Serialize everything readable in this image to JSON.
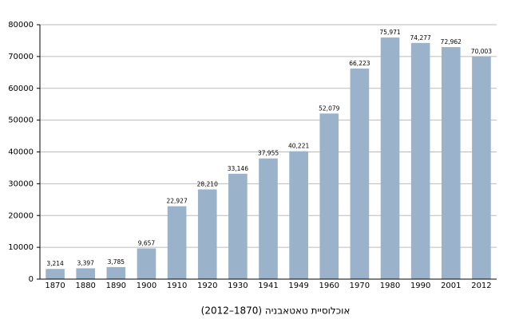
{
  "chart_data": {
    "type": "bar",
    "title": "אוכלוסיית טאטאבניה (1870–2012)",
    "categories": [
      "1870",
      "1880",
      "1890",
      "1900",
      "1910",
      "1920",
      "1930",
      "1941",
      "1949",
      "1960",
      "1970",
      "1980",
      "1990",
      "2001",
      "2012"
    ],
    "values": [
      3214,
      3397,
      3785,
      9657,
      22927,
      28210,
      33146,
      37955,
      40221,
      52079,
      66223,
      75971,
      74277,
      72962,
      70003
    ],
    "value_labels": [
      "3,214",
      "3,397",
      "3,785",
      "9,657",
      "22,927",
      "28,210",
      "33,146",
      "37,955",
      "40,221",
      "52,079",
      "66,223",
      "75,971",
      "74,277",
      "72,962",
      "70,003"
    ],
    "color": "#9bb2cb",
    "ylim": [
      0,
      80000
    ],
    "yticks": [
      0,
      10000,
      20000,
      30000,
      40000,
      50000,
      60000,
      70000,
      80000
    ],
    "grid": true
  }
}
